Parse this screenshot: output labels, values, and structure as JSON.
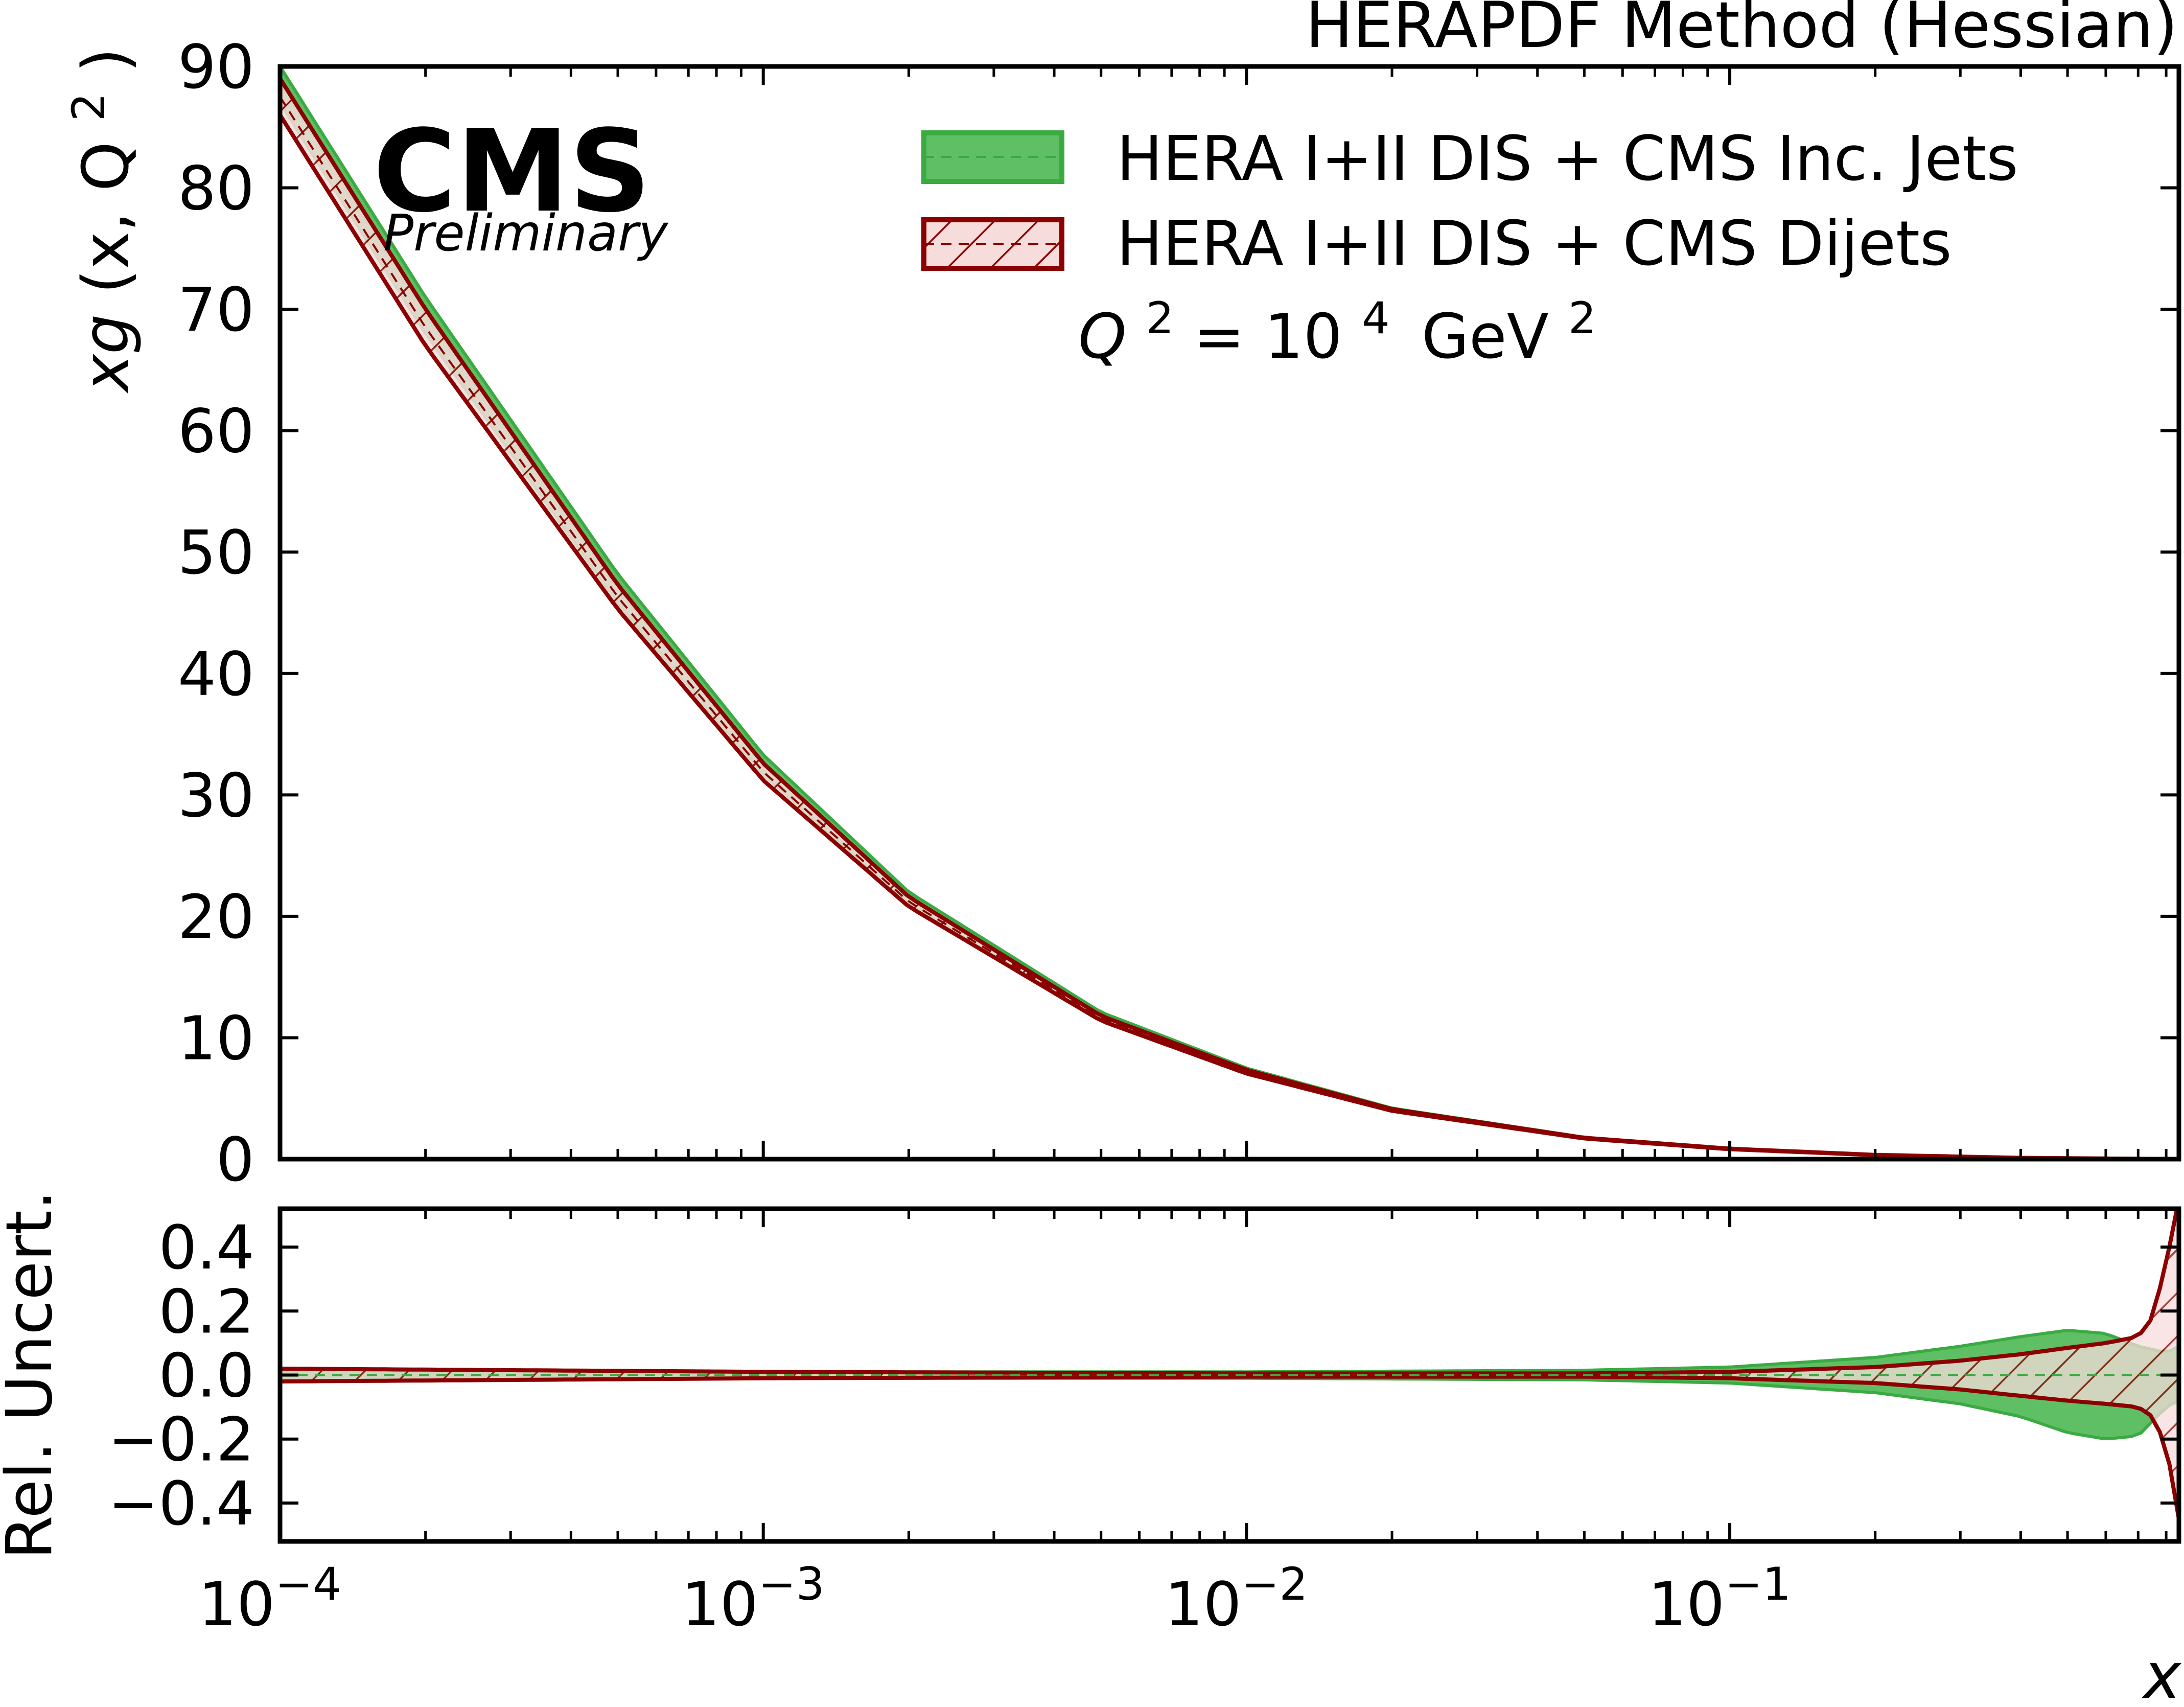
{
  "title": "HERAPDF Method (Hessian)",
  "cms_label": "CMS",
  "cms_sublabel": "Preliminary",
  "annotation": {
    "q_symbol": "Q",
    "q_exp": "2",
    "eq": "= 10",
    "ten_exp": "4",
    "unit": "GeV",
    "unit_exp": "2"
  },
  "colors": {
    "green_fill": "#5fbf64",
    "green_edge": "#3aaa42",
    "red_edge": "#8b0000",
    "red_fill": "#f7dcdc"
  },
  "chart_data": [
    {
      "type": "area",
      "panel": "top",
      "x_scale": "log",
      "xlim": [
        0.0001,
        0.85
      ],
      "ylim": [
        0,
        90
      ],
      "yticks": [
        "0",
        "10",
        "20",
        "30",
        "40",
        "50",
        "60",
        "70",
        "80",
        "90"
      ],
      "ylabel": {
        "main": "xg",
        "args": "(x, Q",
        "exp": "2",
        "close": ")"
      },
      "legend_position": "top-right",
      "grid": false,
      "x": [
        0.0001,
        0.0002,
        0.0005,
        0.001,
        0.002,
        0.005,
        0.01,
        0.02,
        0.05,
        0.1,
        0.2,
        0.4,
        0.85
      ],
      "series": [
        {
          "name": "HERA I+II DIS + CMS Inc. Jets",
          "style": "solid-fill",
          "central": [
            88.5,
            69.5,
            47.0,
            32.5,
            21.5,
            11.8,
            7.3,
            4.1,
            1.75,
            0.85,
            0.35,
            0.1,
            0.0
          ],
          "upper": [
            90.0,
            71.0,
            48.2,
            33.3,
            22.0,
            12.1,
            7.5,
            4.2,
            1.8,
            0.88,
            0.37,
            0.11,
            0.0
          ],
          "lower": [
            87.0,
            68.0,
            45.8,
            31.7,
            21.0,
            11.5,
            7.1,
            4.0,
            1.7,
            0.82,
            0.33,
            0.09,
            0.0
          ]
        },
        {
          "name": "HERA I+II DIS + CMS Dijets",
          "style": "hatched",
          "central": [
            87.5,
            68.5,
            46.3,
            31.9,
            21.2,
            11.6,
            7.2,
            4.05,
            1.73,
            0.84,
            0.34,
            0.1,
            0.0
          ],
          "upper": [
            89.0,
            70.0,
            47.3,
            32.6,
            21.6,
            11.8,
            7.35,
            4.12,
            1.76,
            0.86,
            0.35,
            0.105,
            0.0
          ],
          "lower": [
            86.0,
            67.0,
            45.3,
            31.2,
            20.8,
            11.4,
            7.05,
            3.98,
            1.7,
            0.82,
            0.33,
            0.095,
            0.0
          ]
        }
      ]
    },
    {
      "type": "area",
      "panel": "bottom",
      "x_scale": "log",
      "xlim": [
        0.0001,
        0.85
      ],
      "ylim": [
        -0.52,
        0.52
      ],
      "yticks": [
        "0.4",
        "0.2",
        "0.0",
        "−0.2",
        "−0.4"
      ],
      "ylabel": "Rel. Uncert.",
      "xlabel": "x",
      "xticks": [
        {
          "base": "10",
          "exp": "−4"
        },
        {
          "base": "10",
          "exp": "−3"
        },
        {
          "base": "10",
          "exp": "−2"
        },
        {
          "base": "10",
          "exp": "−1"
        }
      ],
      "grid": false,
      "series": [
        {
          "name": "HERA I+II DIS + CMS Inc. Jets",
          "x": [
            0.0001,
            0.001,
            0.01,
            0.05,
            0.1,
            0.2,
            0.3,
            0.4,
            0.5,
            0.6,
            0.7,
            0.8,
            0.85
          ],
          "upper": [
            0.018,
            0.01,
            0.01,
            0.015,
            0.025,
            0.055,
            0.09,
            0.12,
            0.14,
            0.13,
            0.09,
            0.07,
            0.09
          ],
          "lower": [
            -0.018,
            -0.01,
            -0.01,
            -0.015,
            -0.025,
            -0.055,
            -0.09,
            -0.13,
            -0.18,
            -0.2,
            -0.19,
            -0.1,
            -0.08
          ]
        },
        {
          "name": "HERA I+II DIS + CMS Dijets",
          "x": [
            0.0001,
            0.001,
            0.01,
            0.05,
            0.1,
            0.2,
            0.3,
            0.4,
            0.5,
            0.6,
            0.7,
            0.75,
            0.8,
            0.85
          ],
          "upper": [
            0.02,
            0.01,
            0.005,
            0.005,
            0.01,
            0.025,
            0.045,
            0.065,
            0.085,
            0.1,
            0.12,
            0.18,
            0.35,
            0.55
          ],
          "lower": [
            -0.02,
            -0.01,
            -0.005,
            -0.005,
            -0.01,
            -0.025,
            -0.045,
            -0.065,
            -0.08,
            -0.09,
            -0.1,
            -0.13,
            -0.22,
            -0.45
          ]
        }
      ]
    }
  ]
}
